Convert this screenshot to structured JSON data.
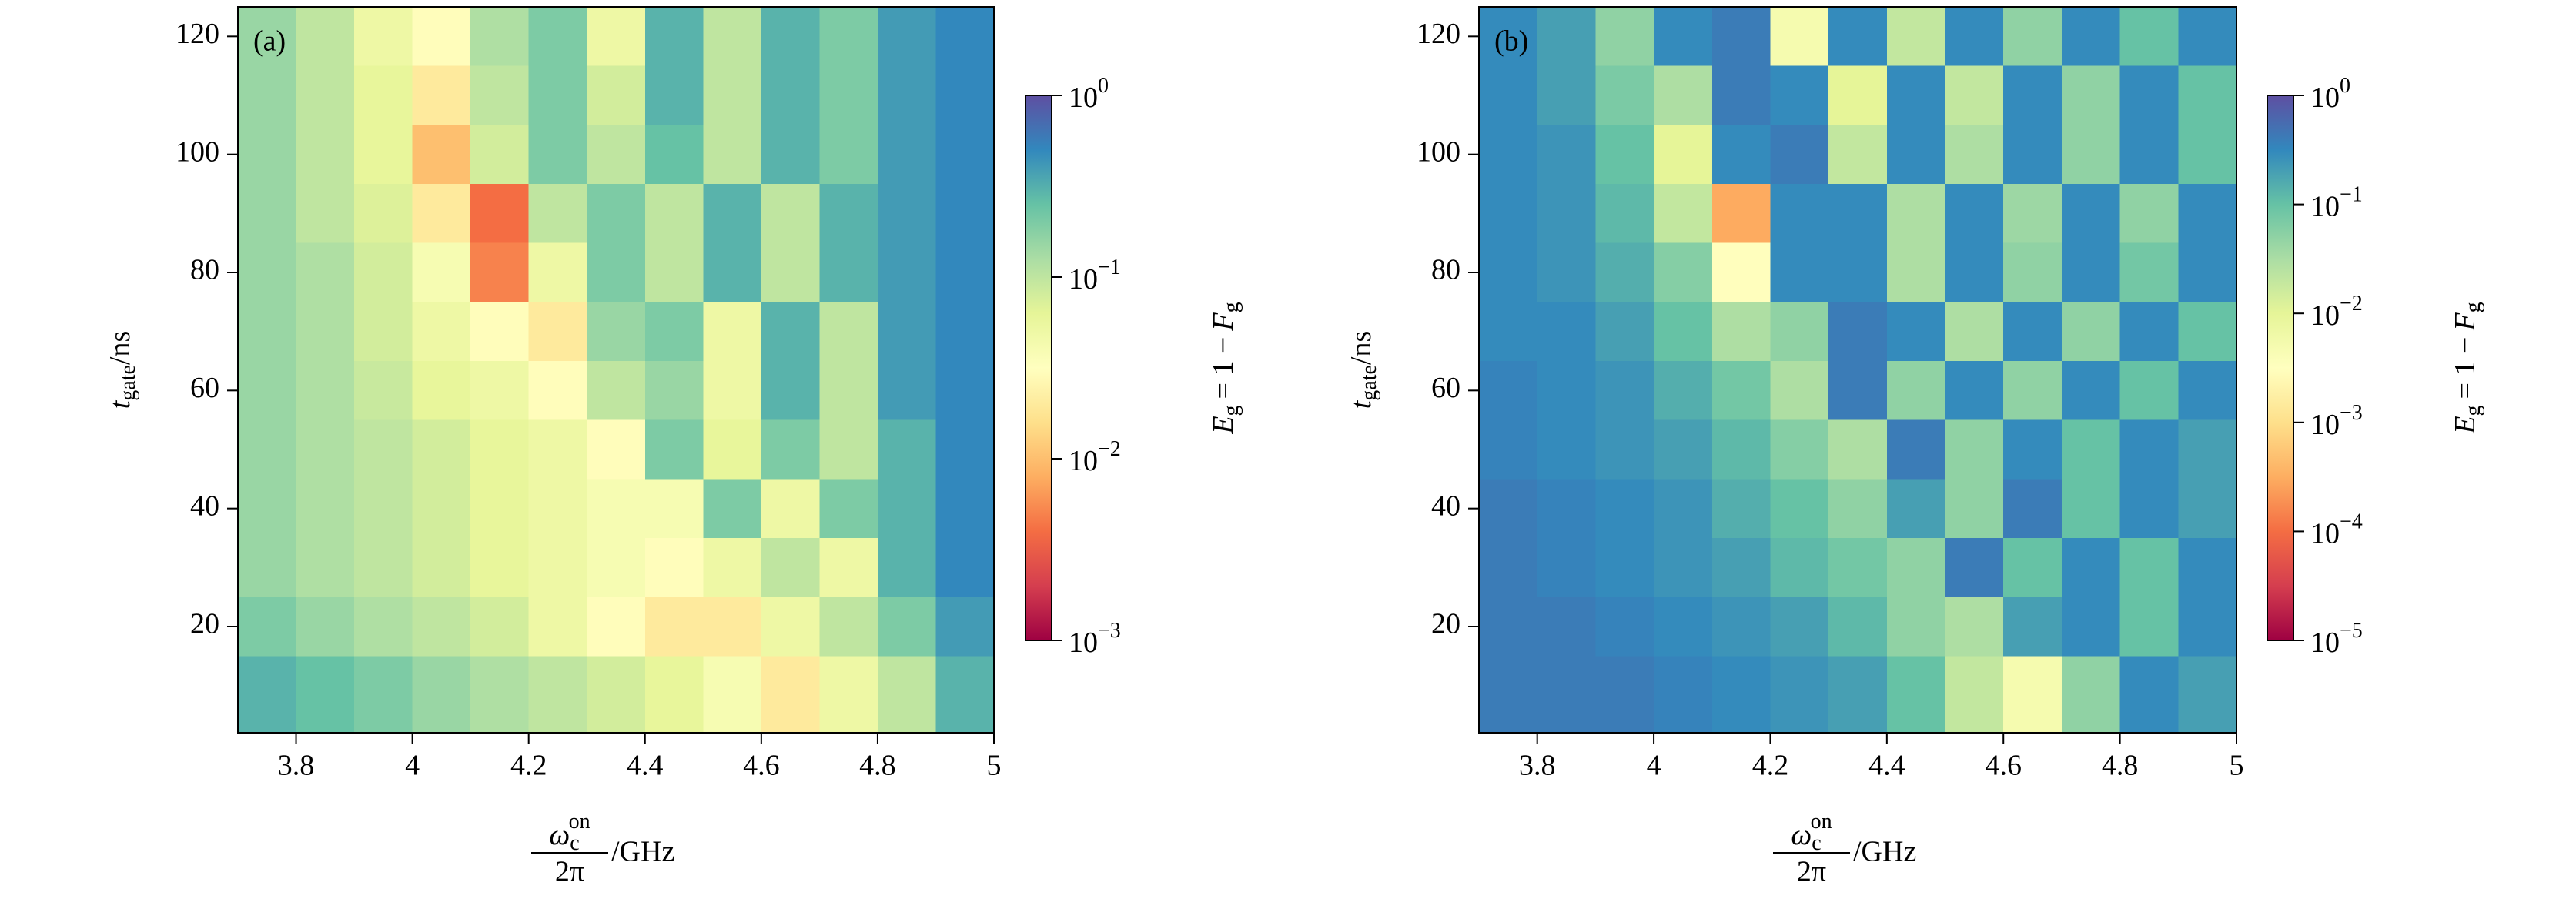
{
  "chart_data": [
    {
      "type": "heatmap",
      "panel_label": "(a)",
      "xlabel": {
        "symbol": "ω",
        "sub": "c",
        "sup": "on",
        "denominator": "2π",
        "unit": "/GHz"
      },
      "ylabel": {
        "symbol": "t",
        "sub": "gate",
        "unit": "/ns"
      },
      "colorbar_label": {
        "symbol": "E",
        "sub": "g",
        "middle": "= 1 −",
        "symbol2": "F",
        "sub2": "g"
      },
      "colormap": [
        "#9e0142",
        "#d53e4f",
        "#f46d43",
        "#fdae61",
        "#fee08b",
        "#ffffbf",
        "#e6f598",
        "#abdda4",
        "#66c2a5",
        "#3288bd",
        "#5e4fa2"
      ],
      "log_color": true,
      "xlim": [
        3.7,
        5.0
      ],
      "xticks": [
        3.8,
        4.0,
        4.2,
        4.4,
        4.6,
        4.8,
        5.0
      ],
      "ylim": [
        2,
        125
      ],
      "yticks": [
        20,
        40,
        60,
        80,
        100,
        120
      ],
      "clim": [
        0.001,
        1
      ],
      "cticks": [
        {
          "value": 0.001,
          "label": "10",
          "exp": "−3"
        },
        {
          "value": 0.01,
          "label": "10",
          "exp": "−2"
        },
        {
          "value": 0.1,
          "label": "10",
          "exp": "−1"
        },
        {
          "value": 1,
          "label": "10",
          "exp": "0"
        }
      ],
      "x": [
        3.75,
        3.85,
        3.95,
        4.05,
        4.15,
        4.25,
        4.35,
        4.45,
        4.55,
        4.65,
        4.75,
        4.85,
        4.95
      ],
      "y": [
        120,
        110,
        100,
        90,
        80,
        70,
        60,
        50,
        40,
        30,
        20,
        10
      ],
      "z": [
        [
          0.15,
          0.1,
          0.05,
          0.03,
          0.12,
          0.2,
          0.05,
          0.3,
          0.1,
          0.3,
          0.2,
          0.4,
          0.5
        ],
        [
          0.15,
          0.1,
          0.06,
          0.02,
          0.1,
          0.2,
          0.08,
          0.3,
          0.1,
          0.3,
          0.2,
          0.4,
          0.5
        ],
        [
          0.15,
          0.1,
          0.06,
          0.01,
          0.08,
          0.2,
          0.1,
          0.25,
          0.1,
          0.3,
          0.2,
          0.4,
          0.5
        ],
        [
          0.15,
          0.1,
          0.07,
          0.02,
          0.004,
          0.1,
          0.2,
          0.1,
          0.3,
          0.1,
          0.3,
          0.4,
          0.5
        ],
        [
          0.15,
          0.12,
          0.08,
          0.04,
          0.005,
          0.05,
          0.2,
          0.1,
          0.3,
          0.1,
          0.3,
          0.4,
          0.5
        ],
        [
          0.15,
          0.12,
          0.08,
          0.05,
          0.03,
          0.02,
          0.15,
          0.2,
          0.05,
          0.3,
          0.1,
          0.4,
          0.5
        ],
        [
          0.15,
          0.12,
          0.09,
          0.06,
          0.05,
          0.03,
          0.1,
          0.15,
          0.05,
          0.3,
          0.1,
          0.4,
          0.5
        ],
        [
          0.15,
          0.12,
          0.1,
          0.08,
          0.06,
          0.05,
          0.03,
          0.2,
          0.06,
          0.2,
          0.1,
          0.3,
          0.5
        ],
        [
          0.15,
          0.12,
          0.1,
          0.08,
          0.06,
          0.05,
          0.04,
          0.04,
          0.2,
          0.05,
          0.2,
          0.3,
          0.5
        ],
        [
          0.15,
          0.12,
          0.1,
          0.08,
          0.06,
          0.05,
          0.04,
          0.03,
          0.05,
          0.1,
          0.05,
          0.3,
          0.5
        ],
        [
          0.2,
          0.15,
          0.12,
          0.1,
          0.08,
          0.05,
          0.03,
          0.02,
          0.02,
          0.05,
          0.1,
          0.2,
          0.4
        ],
        [
          0.3,
          0.25,
          0.2,
          0.15,
          0.12,
          0.1,
          0.08,
          0.06,
          0.04,
          0.02,
          0.05,
          0.1,
          0.3
        ]
      ]
    },
    {
      "type": "heatmap",
      "panel_label": "(b)",
      "xlabel": {
        "symbol": "ω",
        "sub": "c",
        "sup": "on",
        "denominator": "2π",
        "unit": "/GHz"
      },
      "ylabel": {
        "symbol": "t",
        "sub": "gate",
        "unit": "/ns"
      },
      "colorbar_label": {
        "symbol": "E",
        "sub": "g",
        "middle": "= 1 −",
        "symbol2": "F",
        "sub2": "g"
      },
      "colormap": [
        "#9e0142",
        "#d53e4f",
        "#f46d43",
        "#fdae61",
        "#fee08b",
        "#ffffbf",
        "#e6f598",
        "#abdda4",
        "#66c2a5",
        "#3288bd",
        "#5e4fa2"
      ],
      "log_color": true,
      "xlim": [
        3.7,
        5.0
      ],
      "xticks": [
        3.8,
        4.0,
        4.2,
        4.4,
        4.6,
        4.8,
        5.0
      ],
      "ylim": [
        2,
        125
      ],
      "yticks": [
        20,
        40,
        60,
        80,
        100,
        120
      ],
      "clim": [
        1e-05,
        1
      ],
      "cticks": [
        {
          "value": 1e-05,
          "label": "10",
          "exp": "−5"
        },
        {
          "value": 0.0001,
          "label": "10",
          "exp": "−4"
        },
        {
          "value": 0.001,
          "label": "10",
          "exp": "−3"
        },
        {
          "value": 0.01,
          "label": "10",
          "exp": "−2"
        },
        {
          "value": 0.1,
          "label": "10",
          "exp": "−1"
        },
        {
          "value": 1,
          "label": "10",
          "exp": "0"
        }
      ],
      "x": [
        3.75,
        3.85,
        3.95,
        4.05,
        4.15,
        4.25,
        4.35,
        4.45,
        4.55,
        4.65,
        4.75,
        4.85,
        4.95
      ],
      "y": [
        120,
        110,
        100,
        90,
        80,
        70,
        60,
        50,
        40,
        30,
        20,
        10
      ],
      "z": [
        [
          0.3,
          0.2,
          0.05,
          0.3,
          0.4,
          0.005,
          0.3,
          0.02,
          0.3,
          0.05,
          0.3,
          0.1,
          0.3
        ],
        [
          0.3,
          0.2,
          0.07,
          0.03,
          0.4,
          0.3,
          0.01,
          0.3,
          0.02,
          0.3,
          0.05,
          0.3,
          0.1
        ],
        [
          0.3,
          0.25,
          0.1,
          0.01,
          0.3,
          0.4,
          0.02,
          0.3,
          0.03,
          0.3,
          0.05,
          0.3,
          0.1
        ],
        [
          0.3,
          0.25,
          0.12,
          0.02,
          0.0003,
          0.3,
          0.3,
          0.03,
          0.3,
          0.04,
          0.3,
          0.05,
          0.3
        ],
        [
          0.3,
          0.25,
          0.15,
          0.06,
          0.003,
          0.3,
          0.3,
          0.03,
          0.3,
          0.05,
          0.3,
          0.08,
          0.3
        ],
        [
          0.3,
          0.3,
          0.2,
          0.1,
          0.03,
          0.05,
          0.4,
          0.3,
          0.03,
          0.3,
          0.05,
          0.3,
          0.1
        ],
        [
          0.35,
          0.3,
          0.25,
          0.15,
          0.08,
          0.03,
          0.4,
          0.05,
          0.3,
          0.05,
          0.3,
          0.1,
          0.3
        ],
        [
          0.35,
          0.3,
          0.25,
          0.2,
          0.12,
          0.06,
          0.03,
          0.4,
          0.05,
          0.3,
          0.1,
          0.3,
          0.2
        ],
        [
          0.4,
          0.35,
          0.3,
          0.25,
          0.15,
          0.1,
          0.05,
          0.2,
          0.05,
          0.4,
          0.1,
          0.3,
          0.2
        ],
        [
          0.4,
          0.35,
          0.3,
          0.25,
          0.2,
          0.12,
          0.08,
          0.05,
          0.4,
          0.1,
          0.3,
          0.1,
          0.3
        ],
        [
          0.4,
          0.4,
          0.35,
          0.3,
          0.25,
          0.2,
          0.12,
          0.05,
          0.03,
          0.2,
          0.3,
          0.1,
          0.3
        ],
        [
          0.4,
          0.4,
          0.4,
          0.35,
          0.3,
          0.25,
          0.2,
          0.1,
          0.02,
          0.005,
          0.05,
          0.3,
          0.2
        ]
      ]
    }
  ]
}
